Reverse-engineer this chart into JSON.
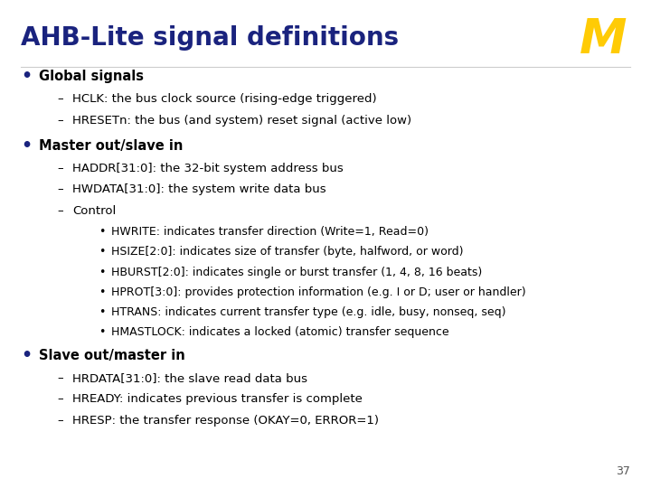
{
  "title": "AHB-Lite signal definitions",
  "title_color": "#1a237e",
  "title_fontsize": 20,
  "bg_color": "#ffffff",
  "text_color": "#000000",
  "bullet_color": "#1a237e",
  "page_number": "37",
  "logo_color": "#FFCB05",
  "sections": [
    {
      "bold": true,
      "text": "Global signals",
      "sub_items": [
        {
          "text": "HCLK: the bus clock source (rising-edge triggered)",
          "bullet_style": "dash"
        },
        {
          "text": "HRESETn: the bus (and system) reset signal (active low)",
          "bullet_style": "dash"
        }
      ]
    },
    {
      "bold": true,
      "text": "Master out/slave in",
      "sub_items": [
        {
          "text": "HADDR[31:0]: the 32-bit system address bus",
          "bullet_style": "dash"
        },
        {
          "text": "HWDATA[31:0]: the system write data bus",
          "bullet_style": "dash"
        },
        {
          "text": "Control",
          "bullet_style": "dash",
          "sub_items": [
            {
              "text": "HWRITE: indicates transfer direction (Write=1, Read=0)",
              "bullet_style": "dot"
            },
            {
              "text": "HSIZE[2:0]: indicates size of transfer (byte, halfword, or word)",
              "bullet_style": "dot"
            },
            {
              "text": "HBURST[2:0]: indicates single or burst transfer (1, 4, 8, 16 beats)",
              "bullet_style": "dot"
            },
            {
              "text": "HPROT[3:0]: provides protection information (e.g. I or D; user or handler)",
              "bullet_style": "dot"
            },
            {
              "text": "HTRANS: indicates current transfer type (e.g. idle, busy, nonseq, seq)",
              "bullet_style": "dot"
            },
            {
              "text": "HMASTLOCK: indicates a locked (atomic) transfer sequence",
              "bullet_style": "dot"
            }
          ]
        }
      ]
    },
    {
      "bold": true,
      "text": "Slave out/master in",
      "sub_items": [
        {
          "text": "HRDATA[31:0]: the slave read data bus",
          "bullet_style": "dash"
        },
        {
          "text": "HREADY: indicates previous transfer is complete",
          "bullet_style": "dash"
        },
        {
          "text": "HRESP: the transfer response (OKAY=0, ERROR=1)",
          "bullet_style": "dash"
        }
      ]
    }
  ]
}
